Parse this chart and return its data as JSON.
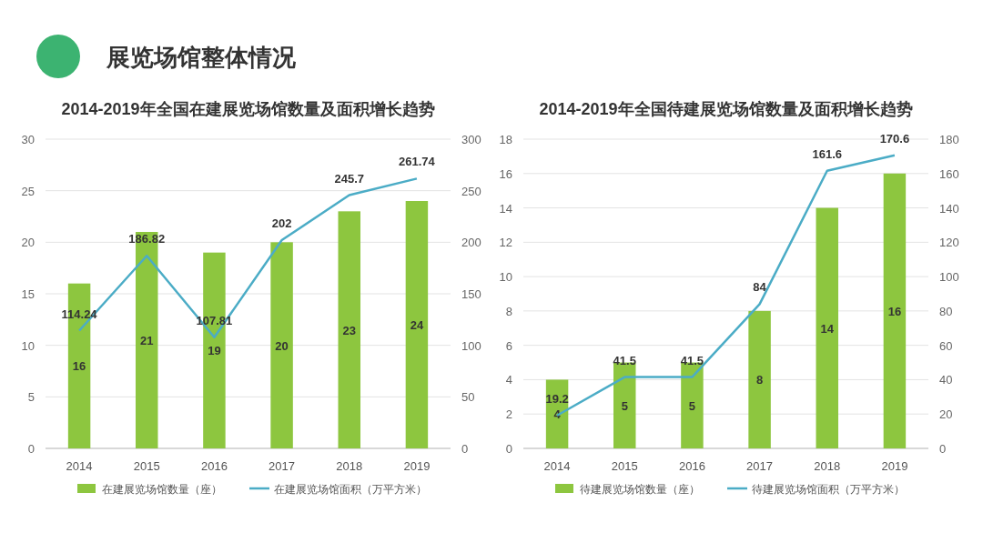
{
  "chart_data": [
    {
      "type": "bar",
      "title": "2014-2019年全国在建展览场馆数量及面积增长趋势",
      "annotations": [
        "展览场馆整体情况"
      ],
      "categories": [
        "2014",
        "2015",
        "2016",
        "2017",
        "2018",
        "2019"
      ],
      "series": [
        {
          "name": "在建展览场馆数量（座）",
          "color": "#8dc63f",
          "values": [
            16,
            21,
            19,
            20,
            23,
            24
          ]
        },
        {
          "name": "在建展览场馆面积（万平方米）",
          "type": "line",
          "axis": "y2",
          "color": "#4bacc6",
          "values": [
            114.24,
            186.82,
            107.81,
            202,
            245.7,
            261.74
          ]
        }
      ],
      "ylim": [
        0,
        30
      ],
      "yticks": [
        0,
        5,
        10,
        15,
        20,
        25,
        30
      ],
      "y2lim": [
        0,
        300
      ],
      "y2ticks": [
        0,
        50,
        100,
        150,
        200,
        250,
        300
      ],
      "grid": "y",
      "legend": "bottom",
      "data_labels": true,
      "marker": "none"
    },
    {
      "type": "bar",
      "title": "2014-2019年全国待建展览场馆数量及面积增长趋势",
      "categories": [
        "2014",
        "2015",
        "2016",
        "2017",
        "2018",
        "2019"
      ],
      "series": [
        {
          "name": "待建展览场馆数量（座）",
          "color": "#8dc63f",
          "values": [
            4,
            5,
            5,
            8,
            14,
            16
          ]
        },
        {
          "name": "待建展览场馆面积（万平方米）",
          "type": "line",
          "axis": "y2",
          "color": "#4bacc6",
          "values": [
            19.2,
            41.5,
            41.5,
            84,
            161.6,
            170.6
          ]
        }
      ],
      "ylim": [
        0,
        18
      ],
      "yticks": [
        0,
        2,
        4,
        6,
        8,
        10,
        12,
        14,
        16,
        18
      ],
      "y2lim": [
        0,
        180
      ],
      "y2ticks": [
        0,
        20,
        40,
        60,
        80,
        100,
        120,
        140,
        160,
        180
      ],
      "grid": "y",
      "legend": "bottom",
      "data_labels": true,
      "marker": "none"
    }
  ]
}
